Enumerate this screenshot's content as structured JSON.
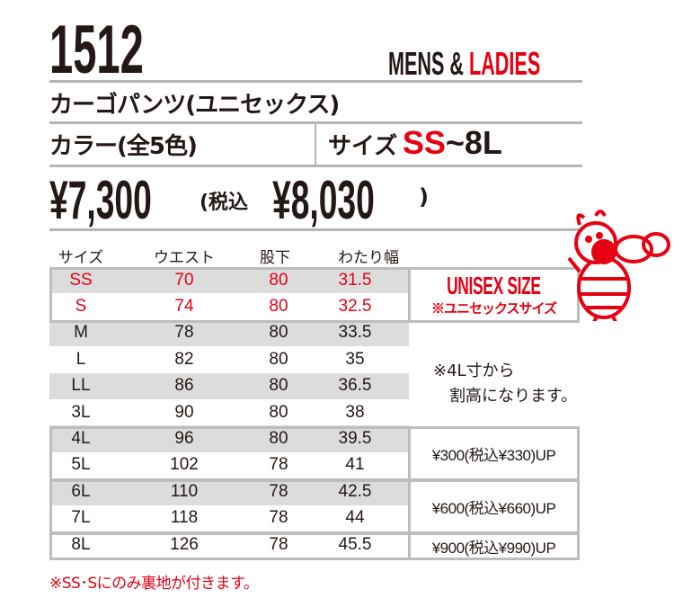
{
  "product": {
    "code": "1512",
    "mens": "MENS &",
    "ladies": "LADIES",
    "name": "カーゴパンツ(ユニセックス)",
    "colors": "カラー(全5色)",
    "size_label": "サイズ",
    "size_from": "SS",
    "size_to": "~8L",
    "price": "¥7,300",
    "tax_label": "(税込",
    "price_tax": "¥8,030",
    "tax_close": ")"
  },
  "table": {
    "headers": [
      "サイズ",
      "ウエスト",
      "股下",
      "わたり幅"
    ],
    "rows": [
      [
        "SS",
        "70",
        "80",
        "31.5"
      ],
      [
        "S",
        "74",
        "80",
        "32.5"
      ],
      [
        "M",
        "78",
        "80",
        "33.5"
      ],
      [
        "L",
        "82",
        "80",
        "35"
      ],
      [
        "LL",
        "86",
        "80",
        "36.5"
      ],
      [
        "3L",
        "90",
        "80",
        "38"
      ],
      [
        "4L",
        "96",
        "80",
        "39.5"
      ],
      [
        "5L",
        "102",
        "78",
        "41"
      ],
      [
        "6L",
        "110",
        "78",
        "42.5"
      ],
      [
        "7L",
        "118",
        "78",
        "44"
      ],
      [
        "8L",
        "126",
        "78",
        "45.5"
      ]
    ]
  },
  "unisex": {
    "title": "UNISEX SIZE",
    "sub": "※ユニセックスサイズ"
  },
  "note": {
    "line1": "※4L寸から",
    "line2": "割高になります。"
  },
  "surcharges": [
    "¥300(税込¥330)UP",
    "¥600(税込¥660)UP",
    "¥900(税込¥990)UP"
  ],
  "footer": "※SS･Sにのみ裏地が付きます。",
  "colors": {
    "accent": "#e60012",
    "text": "#231815",
    "stripe": "#dcdcdc",
    "border": "#bdbdbd"
  }
}
